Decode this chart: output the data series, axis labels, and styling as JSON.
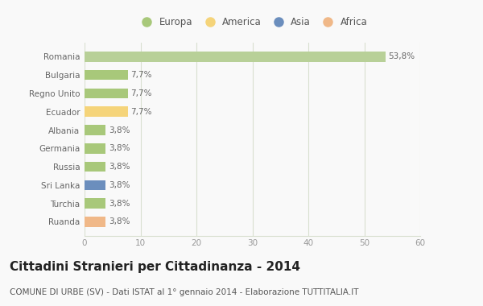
{
  "categories": [
    "Ruanda",
    "Turchia",
    "Sri Lanka",
    "Russia",
    "Germania",
    "Albania",
    "Ecuador",
    "Regno Unito",
    "Bulgaria",
    "Romania"
  ],
  "values": [
    3.8,
    3.8,
    3.8,
    3.8,
    3.8,
    3.8,
    7.7,
    7.7,
    7.7,
    53.8
  ],
  "labels": [
    "3,8%",
    "3,8%",
    "3,8%",
    "3,8%",
    "3,8%",
    "3,8%",
    "7,7%",
    "7,7%",
    "7,7%",
    "53,8%"
  ],
  "colors": [
    "#f0b888",
    "#a8c87a",
    "#6b8ebd",
    "#a8c87a",
    "#a8c87a",
    "#a8c87a",
    "#f5d47a",
    "#a8c87a",
    "#a8c87a",
    "#b8d098"
  ],
  "legend_labels": [
    "Europa",
    "America",
    "Asia",
    "Africa"
  ],
  "legend_colors": [
    "#a8c87a",
    "#f5d47a",
    "#6b8ebd",
    "#f0b888"
  ],
  "title": "Cittadini Stranieri per Cittadinanza - 2014",
  "subtitle": "COMUNE DI URBE (SV) - Dati ISTAT al 1° gennaio 2014 - Elaborazione TUTTITALIA.IT",
  "xlim": [
    0,
    60
  ],
  "xticks": [
    0,
    10,
    20,
    30,
    40,
    50,
    60
  ],
  "bg_color": "#f9f9f9",
  "bar_bg_color": "#f9f9f9",
  "grid_color": "#d8e0d0",
  "title_fontsize": 11,
  "subtitle_fontsize": 7.5,
  "label_fontsize": 7.5,
  "tick_fontsize": 7.5,
  "legend_fontsize": 8.5,
  "ylabel_color": "#666666",
  "xlabel_color": "#888888"
}
